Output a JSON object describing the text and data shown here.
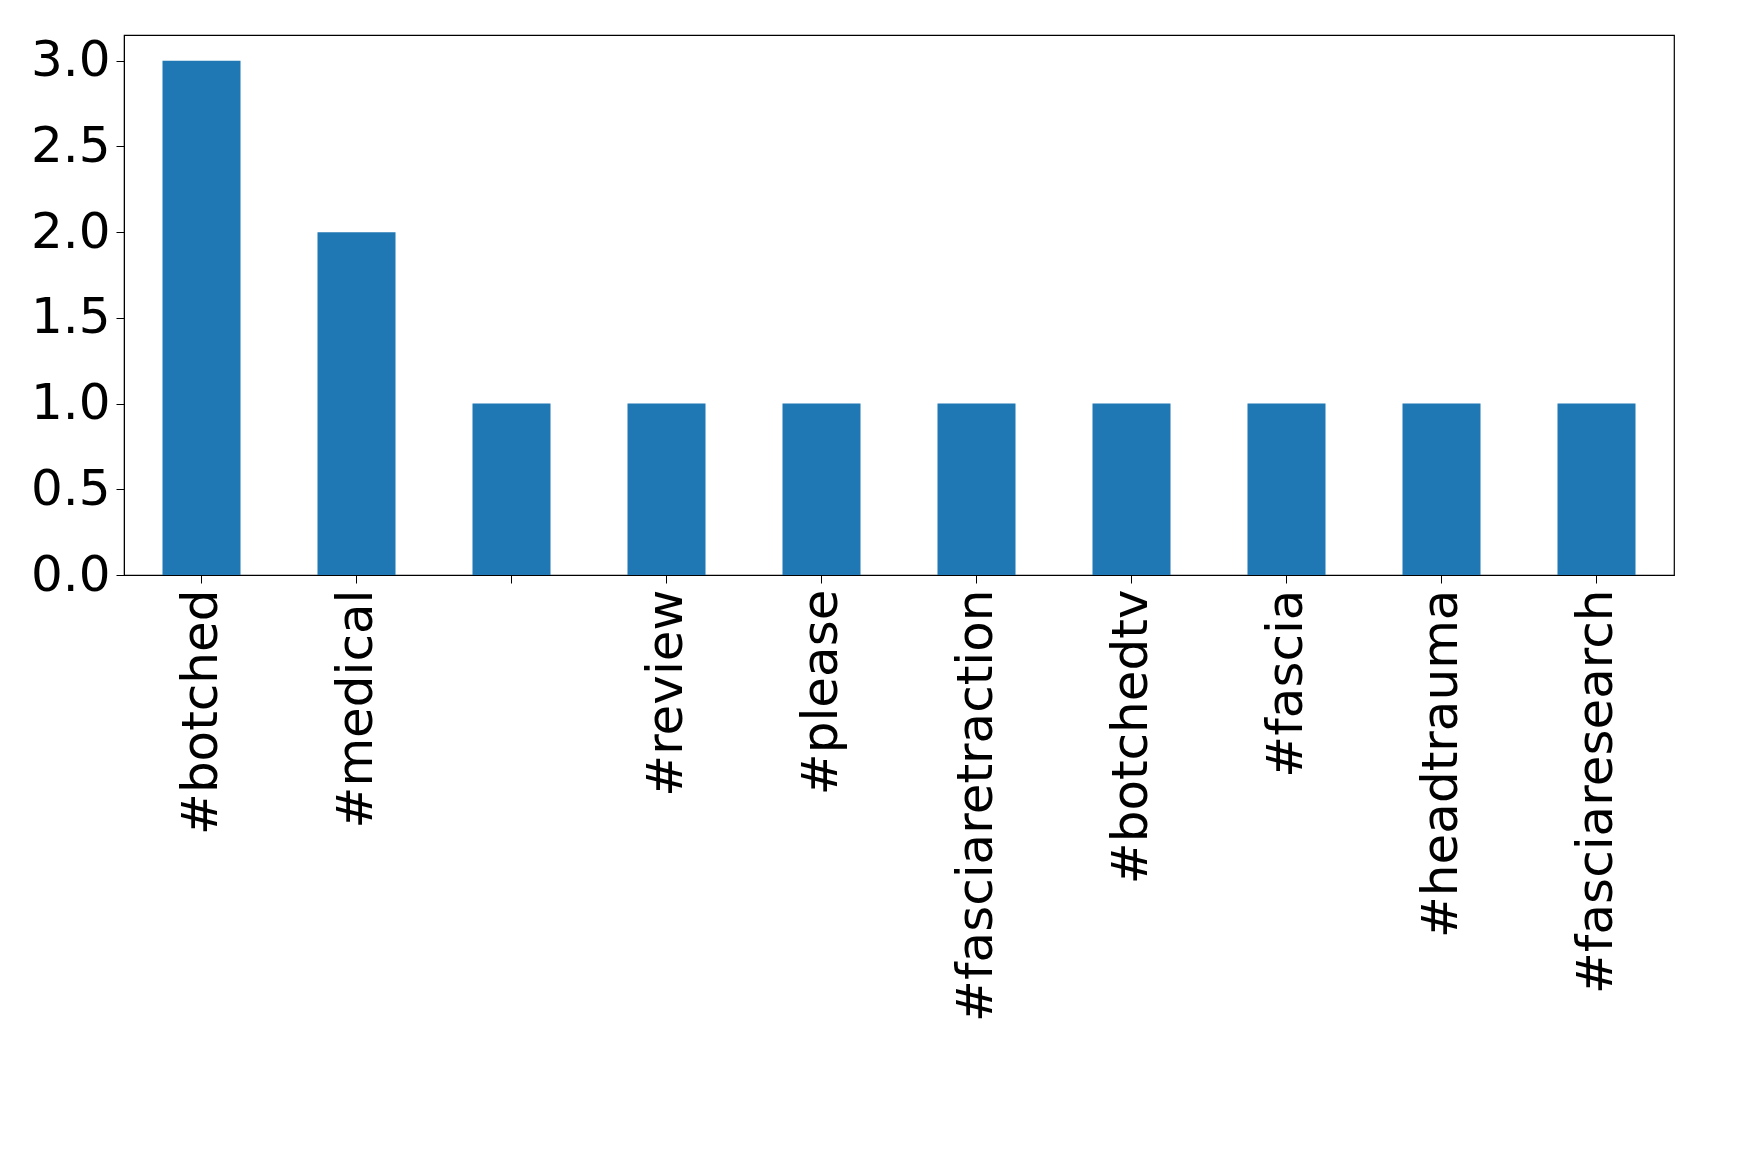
{
  "chart_data": {
    "type": "bar",
    "categories": [
      "#botched",
      "#medical",
      null,
      "#review",
      "#please",
      "#fasciaretraction",
      "#botchedtv",
      "#fascia",
      "#headtrauma",
      "#fasciaresearch"
    ],
    "values": [
      3,
      2,
      1,
      1,
      1,
      1,
      1,
      1,
      1,
      1
    ],
    "color": "#1f77b4",
    "ylim": [
      0,
      3.15
    ],
    "yticks": [
      {
        "value": 0,
        "label": "0.0"
      },
      {
        "value": 0.5,
        "label": "0.5"
      },
      {
        "value": 1,
        "label": "1.0"
      },
      {
        "value": 1.5,
        "label": "1.5"
      },
      {
        "value": 2,
        "label": "2.0"
      },
      {
        "value": 2.5,
        "label": "2.5"
      },
      {
        "value": 3,
        "label": "3.0"
      }
    ],
    "grid": false
  }
}
